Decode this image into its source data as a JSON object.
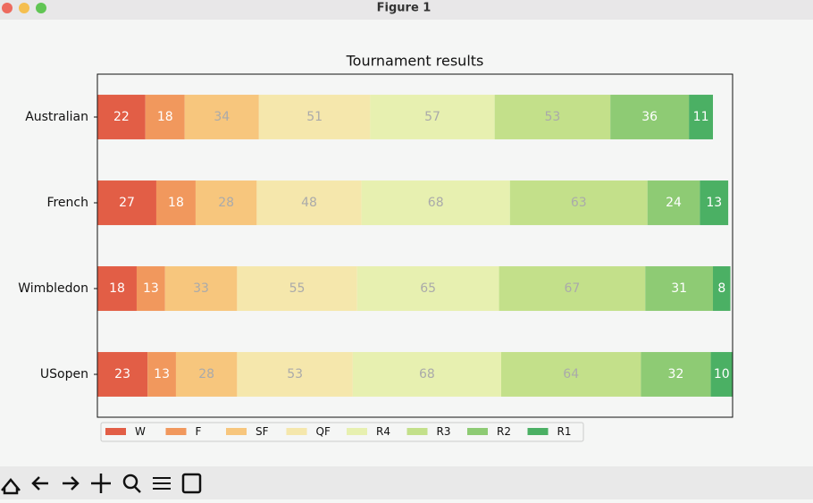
{
  "window_title": "Figure 1",
  "chart_data": {
    "type": "stacked-barh",
    "title": "Tournament results",
    "categories": [
      "Australian",
      "French",
      "Wimbledon",
      "USopen"
    ],
    "series": [
      {
        "name": "W",
        "color": "#e25e46",
        "values": [
          22,
          27,
          18,
          23
        ]
      },
      {
        "name": "F",
        "color": "#f1985d",
        "values": [
          18,
          18,
          13,
          13
        ]
      },
      {
        "name": "SF",
        "color": "#f7c67d",
        "values": [
          34,
          28,
          33,
          28
        ]
      },
      {
        "name": "QF",
        "color": "#f5e7ac",
        "values": [
          51,
          48,
          55,
          53
        ]
      },
      {
        "name": "R4",
        "color": "#e7f0b0",
        "values": [
          57,
          68,
          65,
          68
        ]
      },
      {
        "name": "R3",
        "color": "#c3e08a",
        "values": [
          53,
          63,
          67,
          64
        ]
      },
      {
        "name": "R2",
        "color": "#8ecb74",
        "values": [
          36,
          24,
          31,
          32
        ]
      },
      {
        "name": "R1",
        "color": "#4bb064",
        "values": [
          11,
          13,
          8,
          10
        ]
      }
    ],
    "xlim": [
      0,
      291
    ],
    "legend": "below"
  }
}
